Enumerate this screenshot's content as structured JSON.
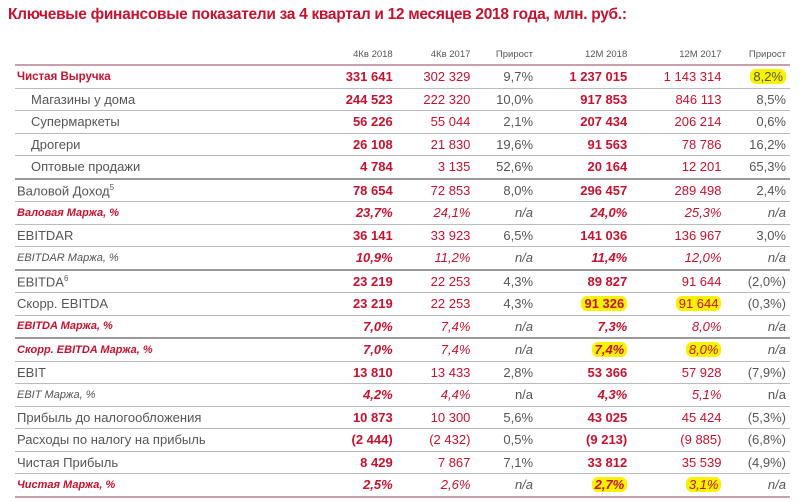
{
  "title": "Ключевые финансовые показатели за 4 квартал и 12 месяцев 2018 года, млн. руб.:",
  "headers": [
    "",
    "4Кв 2018",
    "4Кв 2017",
    "Прирост",
    "12M 2018",
    "12M 2017",
    "Прирост"
  ],
  "highlight_color": "#f6f200",
  "rows": [
    {
      "label": "Чистая Выручка",
      "style": "main",
      "values": [
        "331 641",
        "302 329",
        "9,7%",
        "1 237 015",
        "1 143 314",
        "8,2%"
      ],
      "highlight": [
        5
      ]
    },
    {
      "label": "Магазины у дома",
      "style": "sub",
      "values": [
        "244 523",
        "222 320",
        "10,0%",
        "917 853",
        "846 113",
        "8,5%"
      ]
    },
    {
      "label": "Супермаркеты",
      "style": "sub",
      "values": [
        "56 226",
        "55 044",
        "2,1%",
        "207 434",
        "206 214",
        "0,6%"
      ]
    },
    {
      "label": "Дрогери",
      "style": "sub",
      "values": [
        "26 108",
        "21 830",
        "19,6%",
        "91 563",
        "78 786",
        "16,2%"
      ]
    },
    {
      "label": "Оптовые продажи",
      "style": "sub thick",
      "values": [
        "4 784",
        "3 135",
        "52,6%",
        "20 164",
        "12 201",
        "65,3%"
      ]
    },
    {
      "label": "Валовой Доход",
      "sup": "5",
      "style": "",
      "values": [
        "78 654",
        "72 853",
        "8,0%",
        "296 457",
        "289 498",
        "2,4%"
      ]
    },
    {
      "label": "Валовая Маржа, %",
      "style": "rm",
      "values": [
        "23,7%",
        "24,1%",
        "n/a",
        "24,0%",
        "25,3%",
        "n/a"
      ]
    },
    {
      "label": "EBITDAR",
      "style": "",
      "values": [
        "36 141",
        "33 923",
        "6,5%",
        "141 036",
        "136 967",
        "3,0%"
      ]
    },
    {
      "label": "EBITDAR Маржа, %",
      "style": "gm thick",
      "values": [
        "10,9%",
        "11,2%",
        "n/a",
        "11,4%",
        "12,0%",
        "n/a"
      ]
    },
    {
      "label": "EBITDA",
      "sup": "6",
      "style": "",
      "values": [
        "23 219",
        "22 253",
        "4,3%",
        "89 827",
        "91 644",
        "(2,0%)"
      ]
    },
    {
      "label": "Скорр. EBITDA",
      "style": "",
      "values": [
        "23 219",
        "22 253",
        "4,3%",
        "91 326",
        "91 644",
        "(0,3%)"
      ],
      "highlight": [
        3,
        4
      ]
    },
    {
      "label": "EBITDA Маржа, %",
      "style": "rm thick",
      "values": [
        "7,0%",
        "7,4%",
        "n/a",
        "7,3%",
        "8,0%",
        "n/a"
      ]
    },
    {
      "label": "Скорр. EBITDA Маржа, %",
      "style": "rm",
      "values": [
        "7,0%",
        "7,4%",
        "n/a",
        "7,4%",
        "8,0%",
        "n/a"
      ],
      "highlight": [
        3,
        4
      ]
    },
    {
      "label": "EBIT",
      "style": "",
      "values": [
        "13 810",
        "13 433",
        "2,8%",
        "53 366",
        "57 928",
        "(7,9%)"
      ]
    },
    {
      "label": "EBIT Маржа, %",
      "style": "gm",
      "values": [
        "4,2%",
        "4,4%",
        "n/a",
        "4,3%",
        "5,1%",
        "n/a"
      ]
    },
    {
      "label": "Прибыль до налогообложения",
      "style": "",
      "values": [
        "10 873",
        "10 300",
        "5,6%",
        "43 025",
        "45 424",
        "(5,3%)"
      ]
    },
    {
      "label": "Расходы по налогу на прибыль",
      "style": "",
      "values": [
        "(2 444)",
        "(2 432)",
        "0,5%",
        "(9 213)",
        "(9 885)",
        "(6,8%)"
      ]
    },
    {
      "label": "Чистая Прибыль",
      "style": "",
      "values": [
        "8 429",
        "7 867",
        "7,1%",
        "33 812",
        "35 539",
        "(4,9%)"
      ]
    },
    {
      "label": "Чистая Маржа, %",
      "style": "rm last",
      "values": [
        "2,5%",
        "2,6%",
        "n/a",
        "2,7%",
        "3,1%",
        "n/a"
      ],
      "highlight": [
        3,
        4
      ]
    }
  ]
}
